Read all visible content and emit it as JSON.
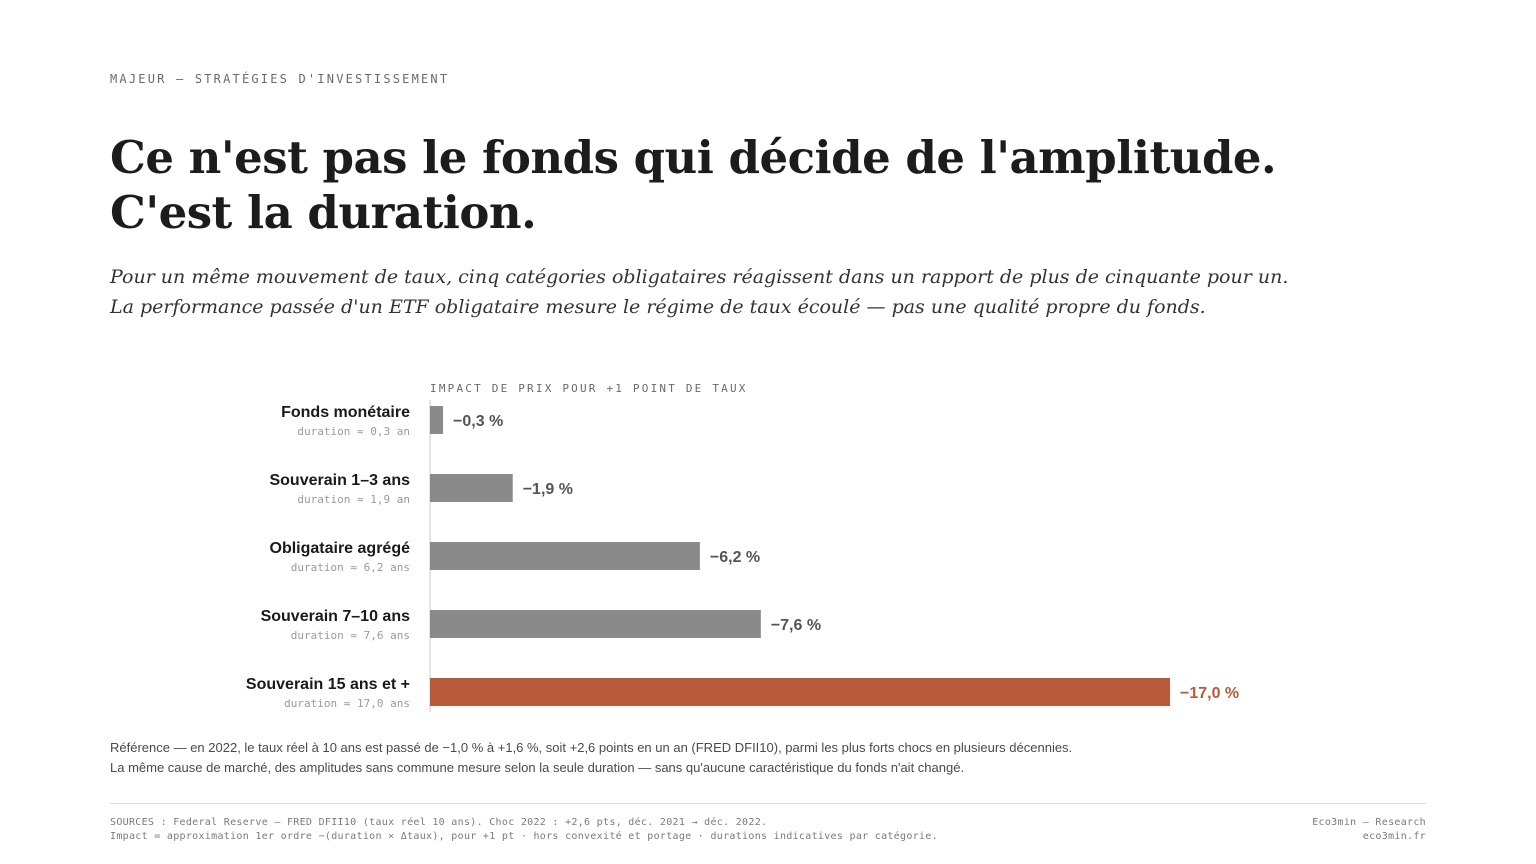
{
  "header": {
    "eyebrow": "MAJEUR — STRATÉGIES D'INVESTISSEMENT",
    "title_line1": "Ce n'est pas le fonds qui décide de l'amplitude.",
    "title_line2": "C'est la duration.",
    "subtitle_line1": "Pour un même mouvement de taux, cinq catégories obligataires réagissent dans un rapport de plus de cinquante pour un.",
    "subtitle_line2": "La performance passée d'un ETF obligataire mesure le régime de taux écoulé — pas une qualité propre du fonds."
  },
  "chart_data": {
    "type": "bar",
    "orientation": "horizontal",
    "title": "IMPACT DE PRIX POUR +1 POINT DE TAUX",
    "categories": [
      "Fonds monétaire",
      "Souverain 1–3 ans",
      "Obligataire agrégé",
      "Souverain 7–10 ans",
      "Souverain 15 ans et +"
    ],
    "sublabels": [
      "duration ≈ 0,3 an",
      "duration ≈ 1,9 an",
      "duration ≈ 6,2 ans",
      "duration ≈ 7,6 ans",
      "duration ≈ 17,0 ans"
    ],
    "values": [
      -0.3,
      -1.9,
      -6.2,
      -7.6,
      -17.0
    ],
    "value_labels": [
      "−0,3 %",
      "−1,9 %",
      "−6,2 %",
      "−7,6 %",
      "−17,0 %"
    ],
    "highlight_index": 4,
    "colors": {
      "bar": "#8a8a8a",
      "highlight": "#b85a3a",
      "label": "#555555",
      "axis": "#c8c8c8"
    },
    "grid": false,
    "legend": "none"
  },
  "notes": {
    "line1": "Référence — en 2022, le taux réel à 10 ans est passé de −1,0 % à +1,6 %, soit +2,6 points en un an (FRED DFII10), parmi les plus forts chocs en plusieurs décennies.",
    "line2": "La même cause de marché, des amplitudes sans commune mesure selon la seule duration — sans qu'aucune caractéristique du fonds n'ait changé."
  },
  "footer": {
    "sources_line1": "SOURCES : Federal Reserve — FRED DFII10 (taux réel 10 ans). Choc 2022 : +2,6 pts, déc. 2021 → déc. 2022.",
    "sources_line2": "Impact = approximation 1er ordre −(duration × Δtaux), pour +1 pt · hors convexité et portage · durations indicatives par catégorie.",
    "brand_line1": "Eco3min — Research",
    "brand_line2": "eco3min.fr"
  }
}
